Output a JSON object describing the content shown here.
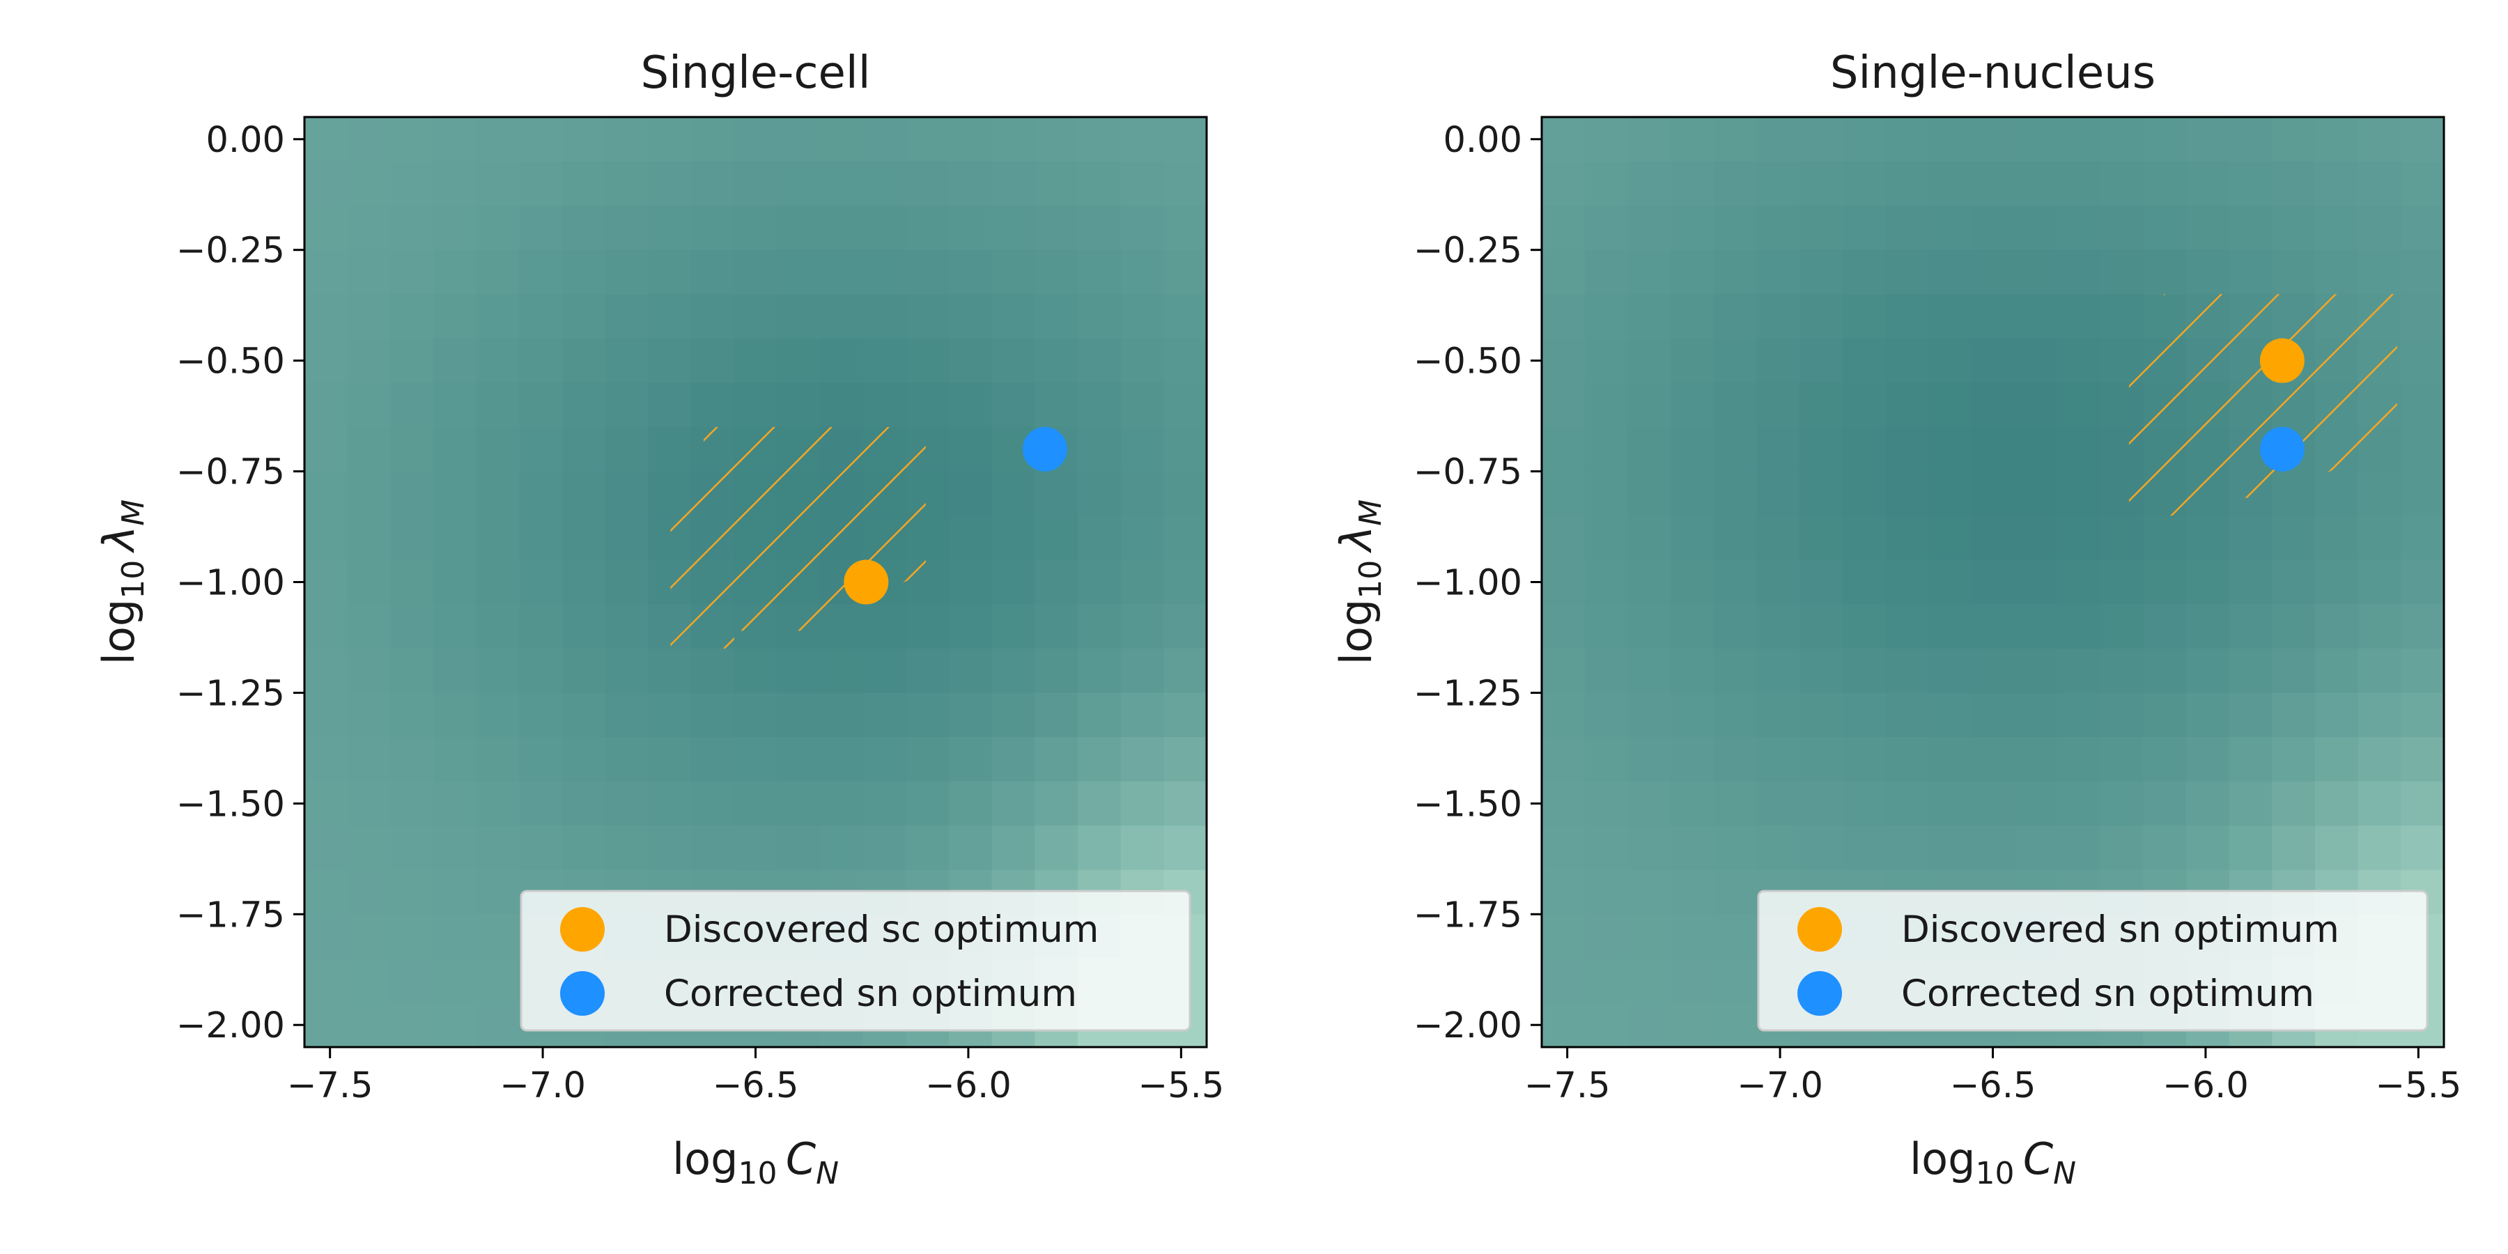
{
  "chart_data": [
    {
      "type": "heatmap",
      "title": "Single-cell",
      "xlabel": {
        "base": "log",
        "sub": "10",
        "symbol": "C",
        "symbol_sub": "N"
      },
      "ylabel": {
        "base": "log",
        "sub": "10",
        "symbol": "λ",
        "symbol_sub": "M"
      },
      "xlim": [
        -7.56,
        -5.44
      ],
      "ylim": [
        -2.05,
        0.05
      ],
      "grid": false,
      "x_ticks": [
        -7.5,
        -7.0,
        -6.5,
        -6.0,
        -5.5
      ],
      "x_tick_labels": [
        "−7.5",
        "−7.0",
        "−6.5",
        "−6.0",
        "−5.5"
      ],
      "y_ticks": [
        0.0,
        -0.25,
        -0.5,
        -0.75,
        -1.0,
        -1.25,
        -1.5,
        -1.75,
        -2.0
      ],
      "y_tick_labels": [
        "0.00",
        "−0.25",
        "−0.50",
        "−0.75",
        "−1.00",
        "−1.25",
        "−1.50",
        "−1.75",
        "−2.00"
      ],
      "colormap": {
        "low": "#3e8482",
        "high": "#a4d2c2"
      },
      "grid_shape": {
        "nx": 21,
        "ny": 21
      },
      "field": {
        "center": [
          -6.3,
          -0.85
        ],
        "sx": 0.95,
        "sy": 0.75,
        "bumps": [
          {
            "x": -5.44,
            "y": -2.05,
            "sx": 0.45,
            "sy": 0.55,
            "amp": 0.85
          }
        ]
      },
      "hatched_region": {
        "color": "#f5a623",
        "x": [
          -6.7,
          -6.1
        ],
        "y": [
          -1.15,
          -0.65
        ]
      },
      "points": [
        {
          "x": -6.24,
          "y": -1.0,
          "color": "#ffa500",
          "label": "Discovered sc optimum"
        },
        {
          "x": -5.82,
          "y": -0.7,
          "color": "#1e90ff",
          "label": "Corrected sn optimum"
        }
      ],
      "legend": {
        "placement": "lower-right",
        "entries": [
          "Discovered sc optimum",
          "Corrected sn optimum"
        ]
      }
    },
    {
      "type": "heatmap",
      "title": "Single-nucleus",
      "xlabel": {
        "base": "log",
        "sub": "10",
        "symbol": "C",
        "symbol_sub": "N"
      },
      "ylabel": {
        "base": "log",
        "sub": "10",
        "symbol": "λ",
        "symbol_sub": "M"
      },
      "xlim": [
        -7.56,
        -5.44
      ],
      "ylim": [
        -2.05,
        0.05
      ],
      "grid": false,
      "x_ticks": [
        -7.5,
        -7.0,
        -6.5,
        -6.0,
        -5.5
      ],
      "x_tick_labels": [
        "−7.5",
        "−7.0",
        "−6.5",
        "−6.0",
        "−5.5"
      ],
      "y_ticks": [
        0.0,
        -0.25,
        -0.5,
        -0.75,
        -1.0,
        -1.25,
        -1.5,
        -1.75,
        -2.0
      ],
      "y_tick_labels": [
        "0.00",
        "−0.25",
        "−0.50",
        "−0.75",
        "−1.00",
        "−1.25",
        "−1.50",
        "−1.75",
        "−2.00"
      ],
      "colormap": {
        "low": "#3e8482",
        "high": "#a4d2c2"
      },
      "grid_shape": {
        "nx": 21,
        "ny": 21
      },
      "field": {
        "center": [
          -6.45,
          -0.75
        ],
        "sx": 1.05,
        "sy": 0.8,
        "bumps": [
          {
            "x": -5.44,
            "y": -2.05,
            "sx": 0.45,
            "sy": 0.6,
            "amp": 0.8
          }
        ]
      },
      "hatched_region": {
        "color": "#f5a623",
        "x": [
          -6.18,
          -5.55
        ],
        "y": [
          -0.85,
          -0.35
        ]
      },
      "points": [
        {
          "x": -5.82,
          "y": -0.5,
          "color": "#ffa500",
          "label": "Discovered sn optimum"
        },
        {
          "x": -5.82,
          "y": -0.7,
          "color": "#1e90ff",
          "label": "Corrected sn optimum"
        }
      ],
      "legend": {
        "placement": "lower-right",
        "entries": [
          "Discovered sn optimum",
          "Corrected sn optimum"
        ]
      }
    }
  ]
}
